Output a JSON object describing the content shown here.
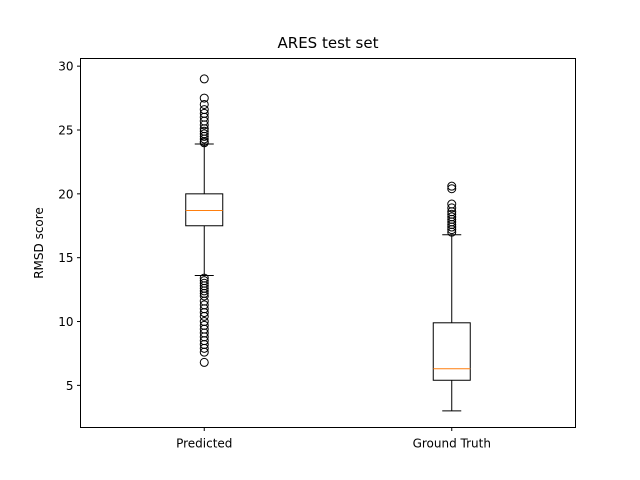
{
  "chart_data": {
    "type": "boxplot",
    "title": "ARES test set",
    "xlabel": "",
    "ylabel": "RMSD score",
    "ylim": [
      1.7,
      30.6
    ],
    "yticks": [
      5,
      10,
      15,
      20,
      25,
      30
    ],
    "grid": false,
    "legend": "none",
    "box_color": "#000000",
    "median_color": "#ff7f0e",
    "categories": [
      "Predicted",
      "Ground Truth"
    ],
    "series": [
      {
        "category": "Predicted",
        "q1": 17.5,
        "median": 18.7,
        "q3": 20.0,
        "whisker_low": 13.6,
        "whisker_high": 23.9,
        "outliers": [
          24.0,
          24.1,
          24.3,
          24.5,
          24.7,
          24.9,
          25.1,
          25.4,
          25.7,
          26.0,
          26.3,
          26.6,
          27.0,
          27.5,
          29.0,
          13.4,
          13.2,
          13.0,
          12.8,
          12.6,
          12.4,
          12.2,
          12.0,
          11.6,
          11.3,
          11.0,
          10.7,
          10.4,
          10.0,
          9.7,
          9.4,
          9.1,
          8.8,
          8.5,
          8.2,
          7.9,
          7.6,
          6.8
        ]
      },
      {
        "category": "Ground Truth",
        "q1": 5.4,
        "median": 6.3,
        "q3": 9.9,
        "whisker_low": 3.0,
        "whisker_high": 16.8,
        "outliers": [
          17.0,
          17.2,
          17.4,
          17.6,
          17.8,
          18.0,
          18.2,
          18.4,
          18.6,
          18.9,
          19.2,
          20.4,
          20.6
        ]
      }
    ]
  }
}
